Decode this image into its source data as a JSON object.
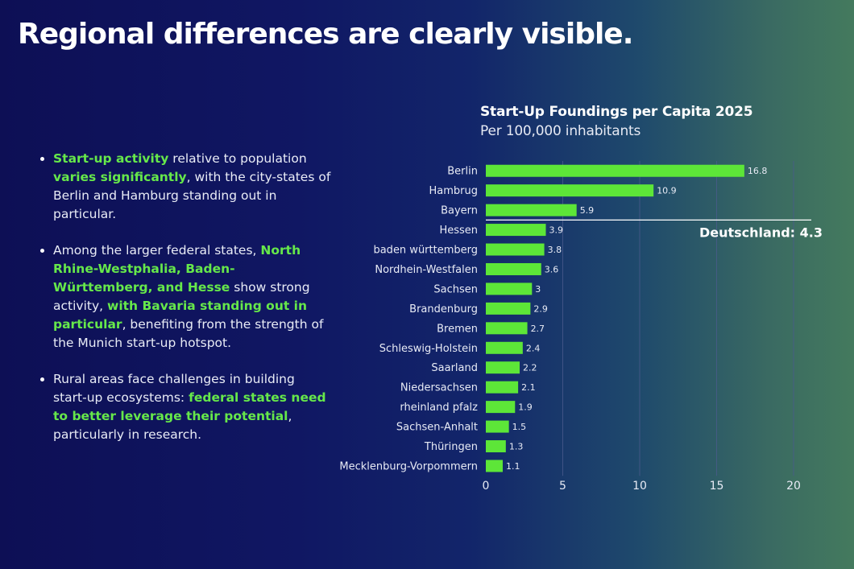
{
  "slide": {
    "title": "Regional differences are clearly visible."
  },
  "bullets": [
    [
      {
        "t": "Start-up activity",
        "hl": true
      },
      {
        "t": " relative to population ",
        "hl": false
      },
      {
        "t": "varies significantly",
        "hl": true
      },
      {
        "t": ", with the city-states of Berlin and Hamburg standing out in particular.",
        "hl": false
      }
    ],
    [
      {
        "t": "Among the larger federal states, ",
        "hl": false
      },
      {
        "t": "North Rhine-Westphalia, Baden-Württemberg, and Hesse",
        "hl": true
      },
      {
        "t": " show strong activity, ",
        "hl": false
      },
      {
        "t": "with Bavaria standing out in particular",
        "hl": true
      },
      {
        "t": ", benefiting from the strength of the Munich start-up hotspot.",
        "hl": false
      }
    ],
    [
      {
        "t": "Rural areas face challenges in building start-up ecosystems: ",
        "hl": false
      },
      {
        "t": "federal states need to better leverage their potential",
        "hl": true
      },
      {
        "t": ", particularly in research.",
        "hl": false
      }
    ]
  ],
  "colors": {
    "bar": "#5de638",
    "grid": "#4a5a8c",
    "highlight_text": "#66e84a"
  },
  "chart_data": {
    "type": "bar",
    "orientation": "horizontal",
    "title": "Start-Up Foundings per Capita 2025",
    "subtitle": "Per 100,000 inhabitants",
    "categories": [
      "Berlin",
      "Hambrug",
      "Bayern",
      "Hessen",
      "baden württemberg",
      "Nordhein-Westfalen",
      "Sachsen",
      "Brandenburg",
      "Bremen",
      "Schleswig-Holstein",
      "Saarland",
      "Niedersachsen",
      "rheinland pfalz",
      "Sachsen-Anhalt",
      "Thüringen",
      "Mecklenburg-Vorpommern"
    ],
    "values": [
      16.8,
      10.9,
      5.9,
      3.9,
      3.8,
      3.6,
      3,
      2.9,
      2.7,
      2.4,
      2.2,
      2.1,
      1.9,
      1.5,
      1.3,
      1.1
    ],
    "value_labels": [
      "16.8",
      "10.9",
      "5.9",
      "3.9",
      "3.8",
      "3.6",
      "3",
      "2.9",
      "2.7",
      "2.4",
      "2.2",
      "2.1",
      "1.9",
      "1.5",
      "1.3",
      "1.1"
    ],
    "xlim": [
      0,
      20
    ],
    "xticks": [
      0,
      5,
      10,
      15,
      20
    ],
    "grid": true,
    "reference_line": {
      "label": "Deutschland: 4.3",
      "value": 4.3
    }
  }
}
